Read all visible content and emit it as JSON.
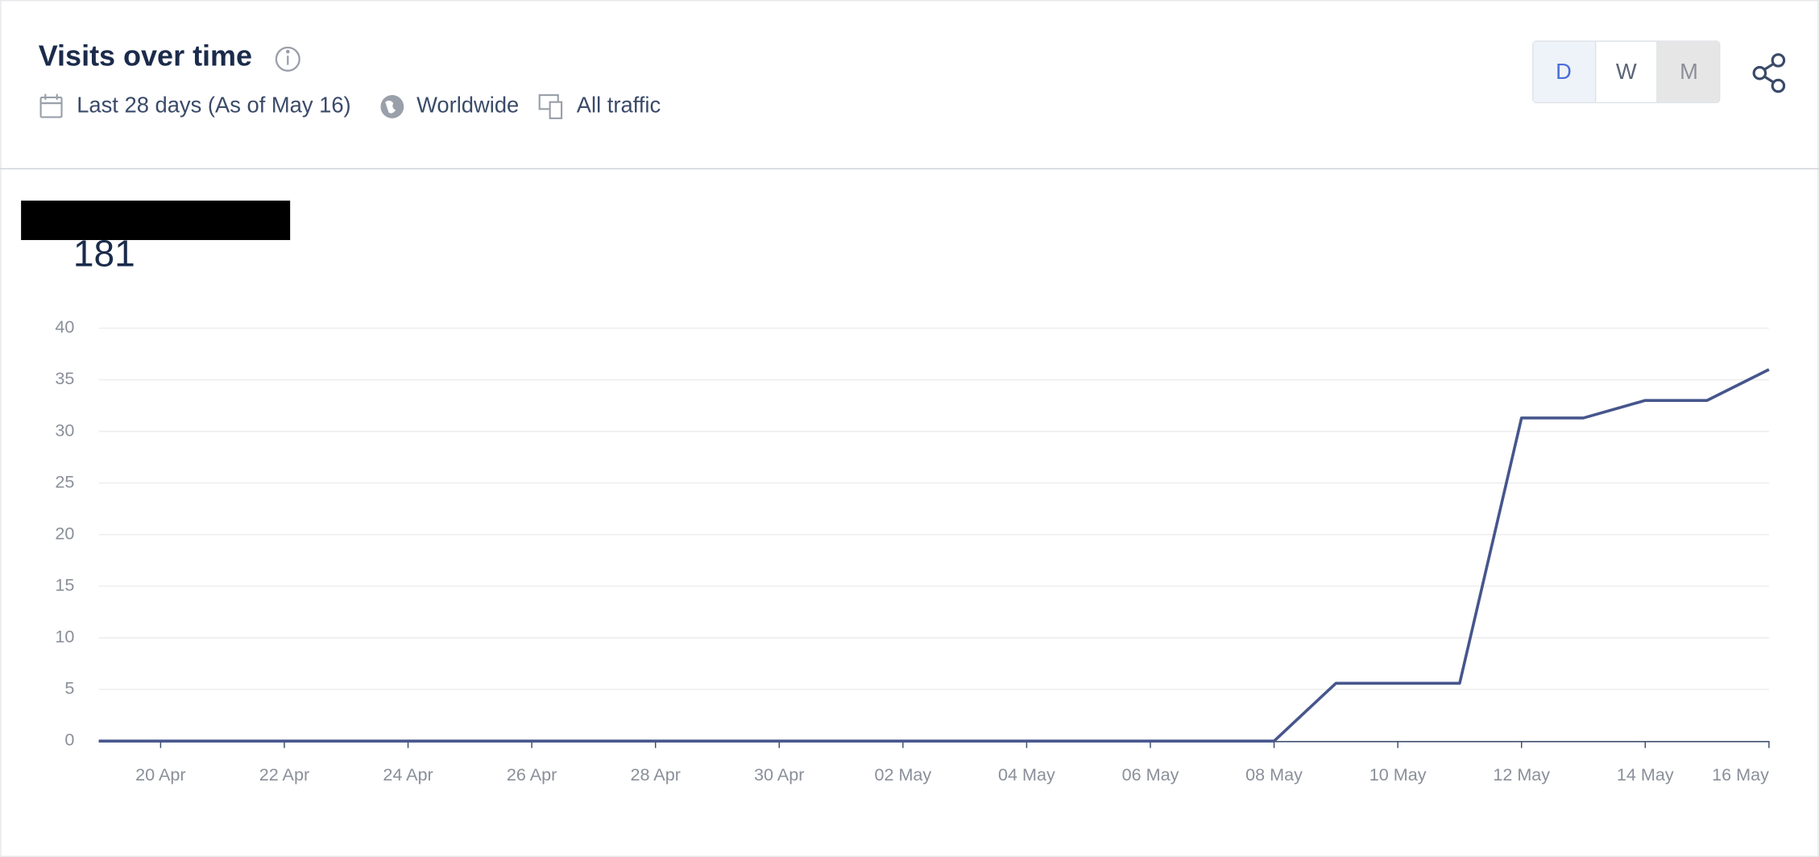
{
  "header": {
    "title": "Visits over time",
    "date_range": "Last 28 days (As of May 16)",
    "region": "Worldwide",
    "traffic": "All traffic",
    "granularity": [
      "D",
      "W",
      "M"
    ]
  },
  "total": "181",
  "chart_data": {
    "type": "line",
    "categories": [
      null,
      "20 Apr",
      null,
      "22 Apr",
      null,
      "24 Apr",
      null,
      "26 Apr",
      null,
      "28 Apr",
      null,
      "30 Apr",
      null,
      "02 May",
      null,
      "04 May",
      null,
      "06 May",
      null,
      "08 May",
      null,
      "10 May",
      null,
      "12 May",
      null,
      "14 May",
      null,
      "16 May"
    ],
    "series": [
      {
        "name": "Visits",
        "color": "#46568c",
        "values": [
          0,
          0,
          0,
          0,
          0,
          0,
          0,
          0,
          0,
          0,
          0,
          0,
          0,
          0,
          0,
          0,
          0,
          0,
          0,
          0,
          5.6,
          5.6,
          5.6,
          31.3,
          31.3,
          33,
          33,
          36
        ]
      }
    ],
    "ylim": [
      0,
      40
    ],
    "yticks": [
      0,
      5,
      10,
      15,
      20,
      25,
      30,
      35,
      40
    ],
    "grid": true
  }
}
